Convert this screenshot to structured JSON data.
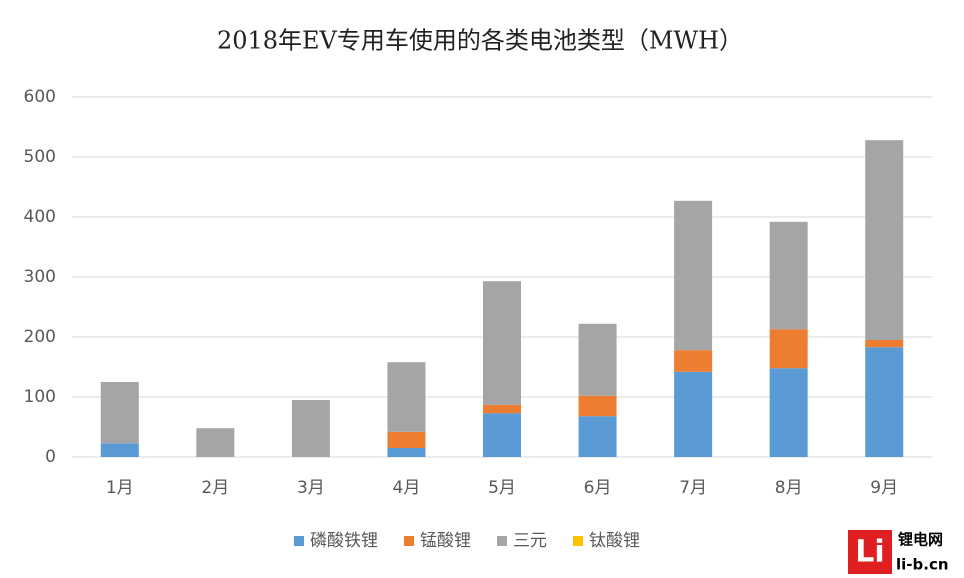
{
  "chart_data": {
    "type": "stacked_bar",
    "title": "2018年EV专用车使用的各类电池类型（MWH）",
    "categories": [
      "1月",
      "2月",
      "3月",
      "4月",
      "5月",
      "6月",
      "7月",
      "8月",
      "9月"
    ],
    "series": [
      {
        "name": "磷酸铁锂",
        "color": "#5b9bd5",
        "values": [
          23,
          0,
          0,
          15,
          73,
          68,
          142,
          148,
          183
        ]
      },
      {
        "name": "锰酸锂",
        "color": "#ed7d31",
        "values": [
          0,
          0,
          0,
          27,
          14,
          34,
          36,
          65,
          12
        ]
      },
      {
        "name": "三元",
        "color": "#a5a5a5",
        "values": [
          102,
          48,
          95,
          116,
          206,
          120,
          249,
          179,
          333
        ]
      },
      {
        "name": "钛酸锂",
        "color": "#ffc000",
        "values": [
          0,
          0,
          0,
          0,
          0,
          0,
          0,
          0,
          0
        ]
      }
    ],
    "ylim": [
      0,
      600
    ],
    "yticks": [
      0,
      100,
      200,
      300,
      400,
      500,
      600
    ],
    "grid": true,
    "legend": "bottom",
    "logo": [
      "锂电网",
      "li-b.cn"
    ]
  }
}
